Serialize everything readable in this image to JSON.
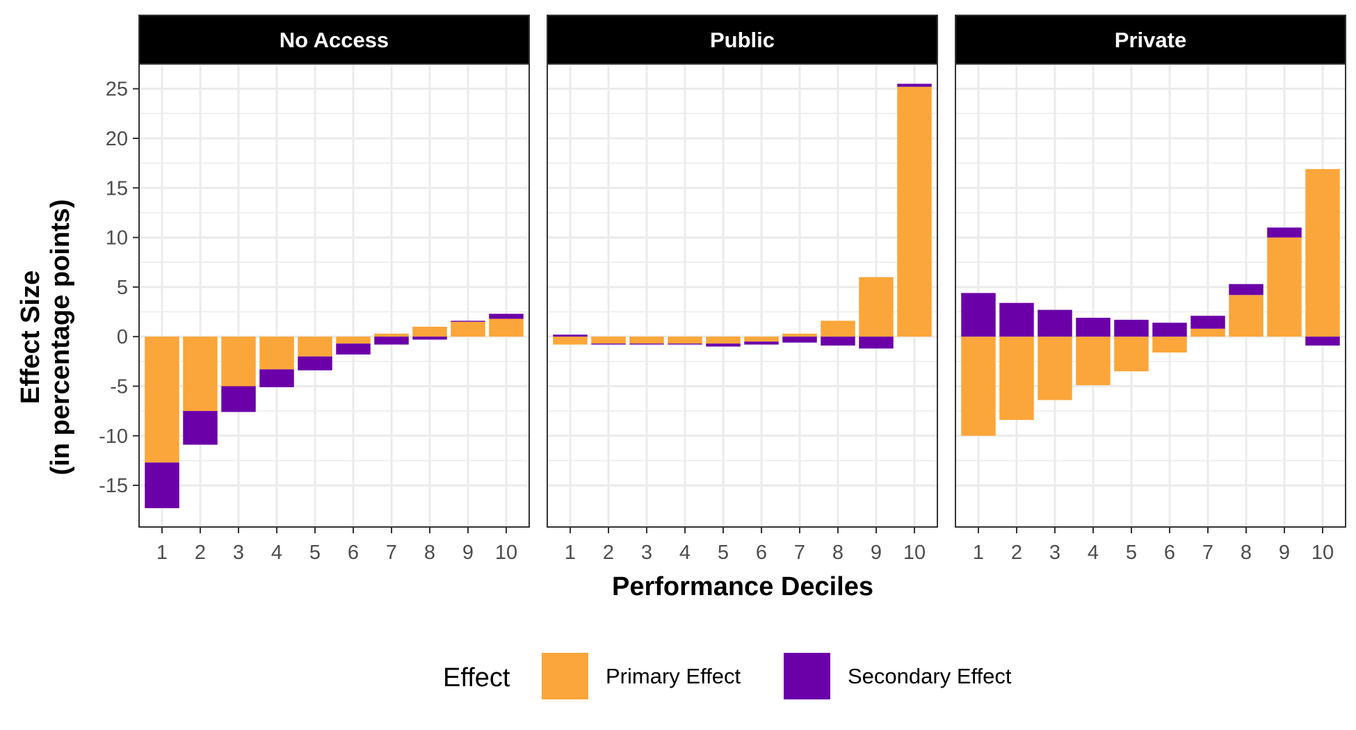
{
  "chart_data": {
    "type": "bar",
    "stacked": true,
    "facet_variable": "Access",
    "facets": [
      "No Access",
      "Public",
      "Private"
    ],
    "categories": [
      "1",
      "2",
      "3",
      "4",
      "5",
      "6",
      "7",
      "8",
      "9",
      "10"
    ],
    "xlabel": "Performance Deciles",
    "ylabel_lines": [
      "Effect Size",
      "(in percentage points)"
    ],
    "ylim": [
      -19.2,
      27.5
    ],
    "yticks": [
      -15,
      -10,
      -5,
      0,
      5,
      10,
      15,
      20,
      25
    ],
    "ytick_labels": [
      "-15",
      "-10",
      "-5",
      "0",
      "5",
      "10",
      "15",
      "20",
      "25"
    ],
    "grid": true,
    "legend": {
      "title": "Effect",
      "position": "bottom",
      "entries": [
        "Primary Effect",
        "Secondary Effect"
      ]
    },
    "colors": {
      "Primary Effect": "#FBA63A",
      "Secondary Effect": "#6B00A8"
    },
    "panels": [
      {
        "facet": "No Access",
        "series": [
          {
            "name": "Primary Effect",
            "values": [
              -12.7,
              -7.5,
              -5.0,
              -3.3,
              -2.0,
              -0.7,
              0.3,
              1.0,
              1.5,
              1.8
            ]
          },
          {
            "name": "Secondary Effect",
            "values": [
              -4.6,
              -3.4,
              -2.6,
              -1.8,
              -1.4,
              -1.1,
              -0.8,
              -0.3,
              0.1,
              0.5
            ]
          }
        ]
      },
      {
        "facet": "Public",
        "series": [
          {
            "name": "Primary Effect",
            "values": [
              -0.8,
              -0.7,
              -0.7,
              -0.7,
              -0.7,
              -0.5,
              0.3,
              1.6,
              6.0,
              25.2
            ]
          },
          {
            "name": "Secondary Effect",
            "values": [
              0.2,
              -0.1,
              -0.1,
              -0.1,
              -0.3,
              -0.3,
              -0.6,
              -0.9,
              -1.2,
              0.3
            ]
          }
        ]
      },
      {
        "facet": "Private",
        "series": [
          {
            "name": "Primary Effect",
            "values": [
              -10.0,
              -8.4,
              -6.4,
              -4.9,
              -3.5,
              -1.6,
              0.8,
              4.2,
              10.0,
              16.9
            ]
          },
          {
            "name": "Secondary Effect",
            "values": [
              4.4,
              3.4,
              2.7,
              1.9,
              1.7,
              1.4,
              1.3,
              1.1,
              1.0,
              -0.9
            ]
          }
        ]
      }
    ]
  }
}
